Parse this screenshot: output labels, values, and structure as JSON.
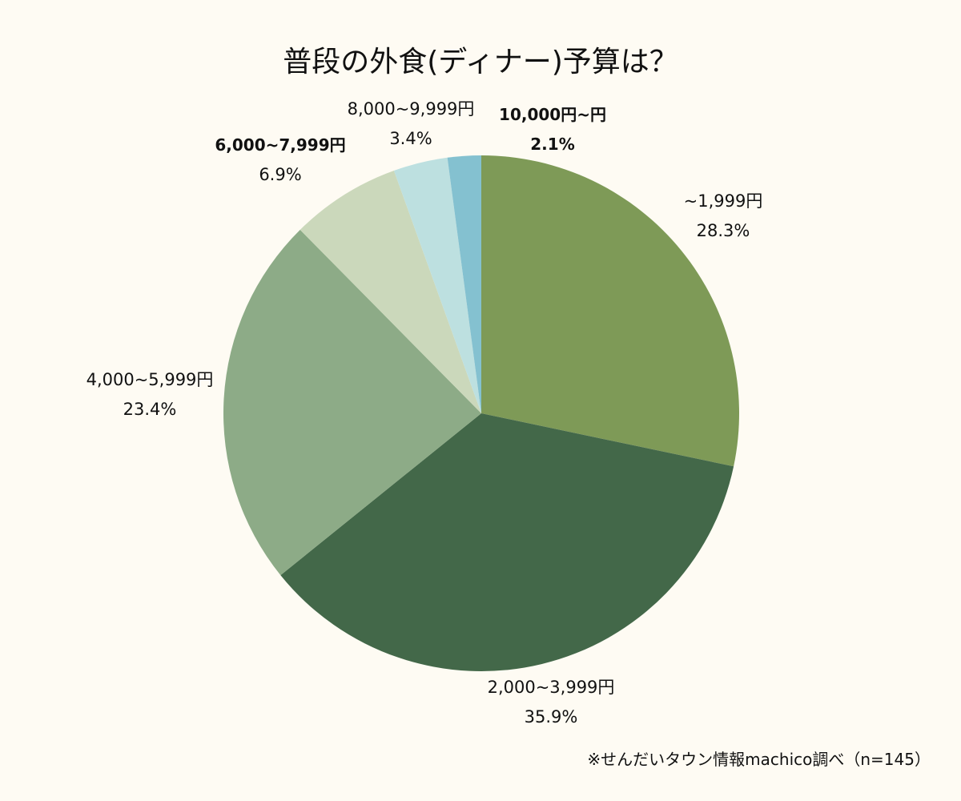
{
  "chart_data": {
    "type": "pie",
    "title": "普段の外食(ディナー)予算は？",
    "start": "top",
    "direction": "clockwise",
    "slices": [
      {
        "label": "~1,999円",
        "value": 28.3,
        "display": "28.3%",
        "color": "#7e9a57"
      },
      {
        "label": "2,000~3,999円",
        "value": 35.9,
        "display": "35.9%",
        "color": "#436849"
      },
      {
        "label": "4,000~5,999円",
        "value": 23.4,
        "display": "23.4%",
        "color": "#8dab87"
      },
      {
        "label": "6,000~7,999円",
        "value": 6.9,
        "display": "6.9%",
        "color": "#cbd8bb"
      },
      {
        "label": "8,000~9,999円",
        "value": 3.4,
        "display": "3.4%",
        "color": "#bde0e0"
      },
      {
        "label": "10,000円~円",
        "value": 2.1,
        "display": "2.1%",
        "color": "#84c1d0"
      }
    ],
    "source": "※せんだいタウン情報machico調べ（n=145）"
  }
}
